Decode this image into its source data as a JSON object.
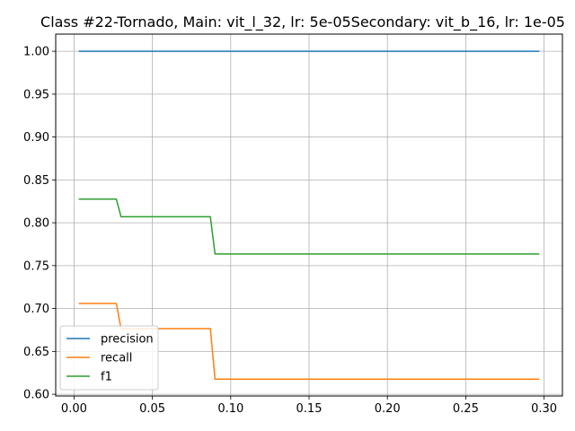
{
  "chart_data": {
    "type": "line",
    "title": "Class #22-Tornado, Main: vit_l_32, lr: 5e-05Secondary: vit_b_16, lr: 1e-05",
    "xlabel": "",
    "ylabel": "",
    "xlim": [
      -0.0117,
      0.3117
    ],
    "ylim": [
      0.598,
      1.02
    ],
    "xticks": [
      0.0,
      0.05,
      0.1,
      0.15,
      0.2,
      0.25,
      0.3
    ],
    "xtick_labels": [
      "0.00",
      "0.05",
      "0.10",
      "0.15",
      "0.20",
      "0.25",
      "0.30"
    ],
    "yticks": [
      0.6,
      0.65,
      0.7,
      0.75,
      0.8,
      0.85,
      0.9,
      0.95,
      1.0
    ],
    "ytick_labels": [
      "0.60",
      "0.65",
      "0.70",
      "0.75",
      "0.80",
      "0.85",
      "0.90",
      "0.95",
      "1.00"
    ],
    "grid": true,
    "legend_position": "lower-left",
    "series": [
      {
        "name": "precision",
        "color": "#1f77b4",
        "x": [
          0.003,
          0.297
        ],
        "y": [
          1.0,
          1.0
        ]
      },
      {
        "name": "recall",
        "color": "#ff7f0e",
        "x": [
          0.003,
          0.027,
          0.03,
          0.087,
          0.09,
          0.297
        ],
        "y": [
          0.7059,
          0.7059,
          0.6765,
          0.6765,
          0.6176,
          0.6176
        ]
      },
      {
        "name": "f1",
        "color": "#2ca02c",
        "x": [
          0.003,
          0.027,
          0.03,
          0.087,
          0.09,
          0.297
        ],
        "y": [
          0.8276,
          0.8276,
          0.807,
          0.807,
          0.7636,
          0.7636
        ]
      }
    ]
  }
}
